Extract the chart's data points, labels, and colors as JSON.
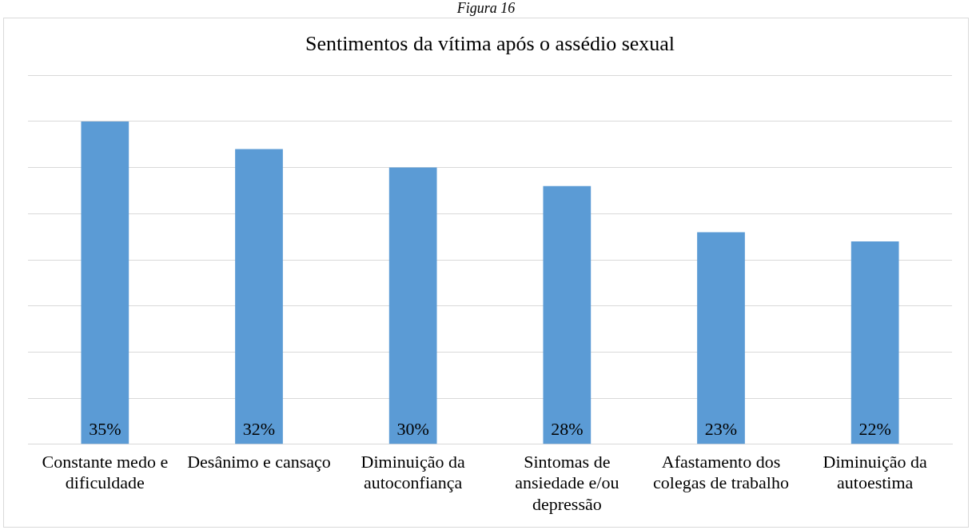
{
  "chart_data": {
    "type": "bar",
    "title": "Sentimentos da vítima após o assédio sexual",
    "annotations": [
      "Figura 16"
    ],
    "categories": [
      "Constante medo e dificuldade",
      "Desânimo e cansaço",
      "Diminuição da autoconfiança",
      "Sintomas de ansiedade e/ou depressão",
      "Afastamento dos colegas de trabalho",
      "Diminuição da autoestima"
    ],
    "values": [
      35,
      32,
      30,
      28,
      23,
      22
    ],
    "color": "#5b9bd5",
    "ylim": [
      0,
      40
    ],
    "yticks": [
      {
        "value": 0,
        "label": null
      },
      {
        "value": 5,
        "label": null
      },
      {
        "value": 10,
        "label": null
      },
      {
        "value": 15,
        "label": null
      },
      {
        "value": 20,
        "label": null
      },
      {
        "value": 25,
        "label": null
      },
      {
        "value": 30,
        "label": null
      },
      {
        "value": 35,
        "label": null
      },
      {
        "value": 40,
        "label": null
      }
    ],
    "value_labels": [
      "35%",
      "32%",
      "30%",
      "28%",
      "23%",
      "22%"
    ],
    "grid": "y",
    "tick_labels": "x",
    "legend": false
  }
}
